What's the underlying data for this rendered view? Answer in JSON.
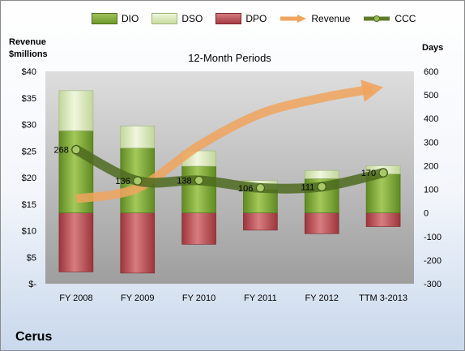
{
  "chart_data": {
    "type": "bar",
    "title": "12-Month Periods",
    "company": "Cerus",
    "left_axis_title_line1": "Revenue",
    "left_axis_title_line2": "$millions",
    "right_axis_title": "Days",
    "categories": [
      "FY 2008",
      "FY 2009",
      "FY 2010",
      "FY 2011",
      "FY 2012",
      "TTM 3-2013"
    ],
    "left_ticks": [
      "$40",
      "$35",
      "$30",
      "$25",
      "$20",
      "$15",
      "$10",
      "$5",
      "$-"
    ],
    "right_ticks": [
      "600",
      "500",
      "400",
      "300",
      "200",
      "100",
      "0",
      "-100",
      "-200",
      "-300"
    ],
    "ylim_left": [
      0,
      40
    ],
    "ylim_right": [
      -300,
      600
    ],
    "series": [
      {
        "name": "DIO",
        "color": "#6f9a2a",
        "values": [
          348,
          275,
          198,
          100,
          145,
          165
        ]
      },
      {
        "name": "DSO",
        "color": "#d6e6b0",
        "values": [
          170,
          93,
          65,
          37,
          35,
          35
        ]
      },
      {
        "name": "DPO",
        "color": "#b34a4f",
        "values": [
          250,
          255,
          133,
          73,
          88,
          58
        ]
      },
      {
        "name": "Revenue",
        "color": "#f0a45e",
        "values": [
          16,
          18,
          26,
          32,
          35,
          37
        ]
      },
      {
        "name": "CCC",
        "color": "#5e7a2a",
        "values": [
          268,
          136,
          138,
          106,
          111,
          170
        ]
      }
    ],
    "data_labels": [
      "268",
      "136",
      "138",
      "106",
      "111",
      "170"
    ],
    "legend_position": "top"
  }
}
